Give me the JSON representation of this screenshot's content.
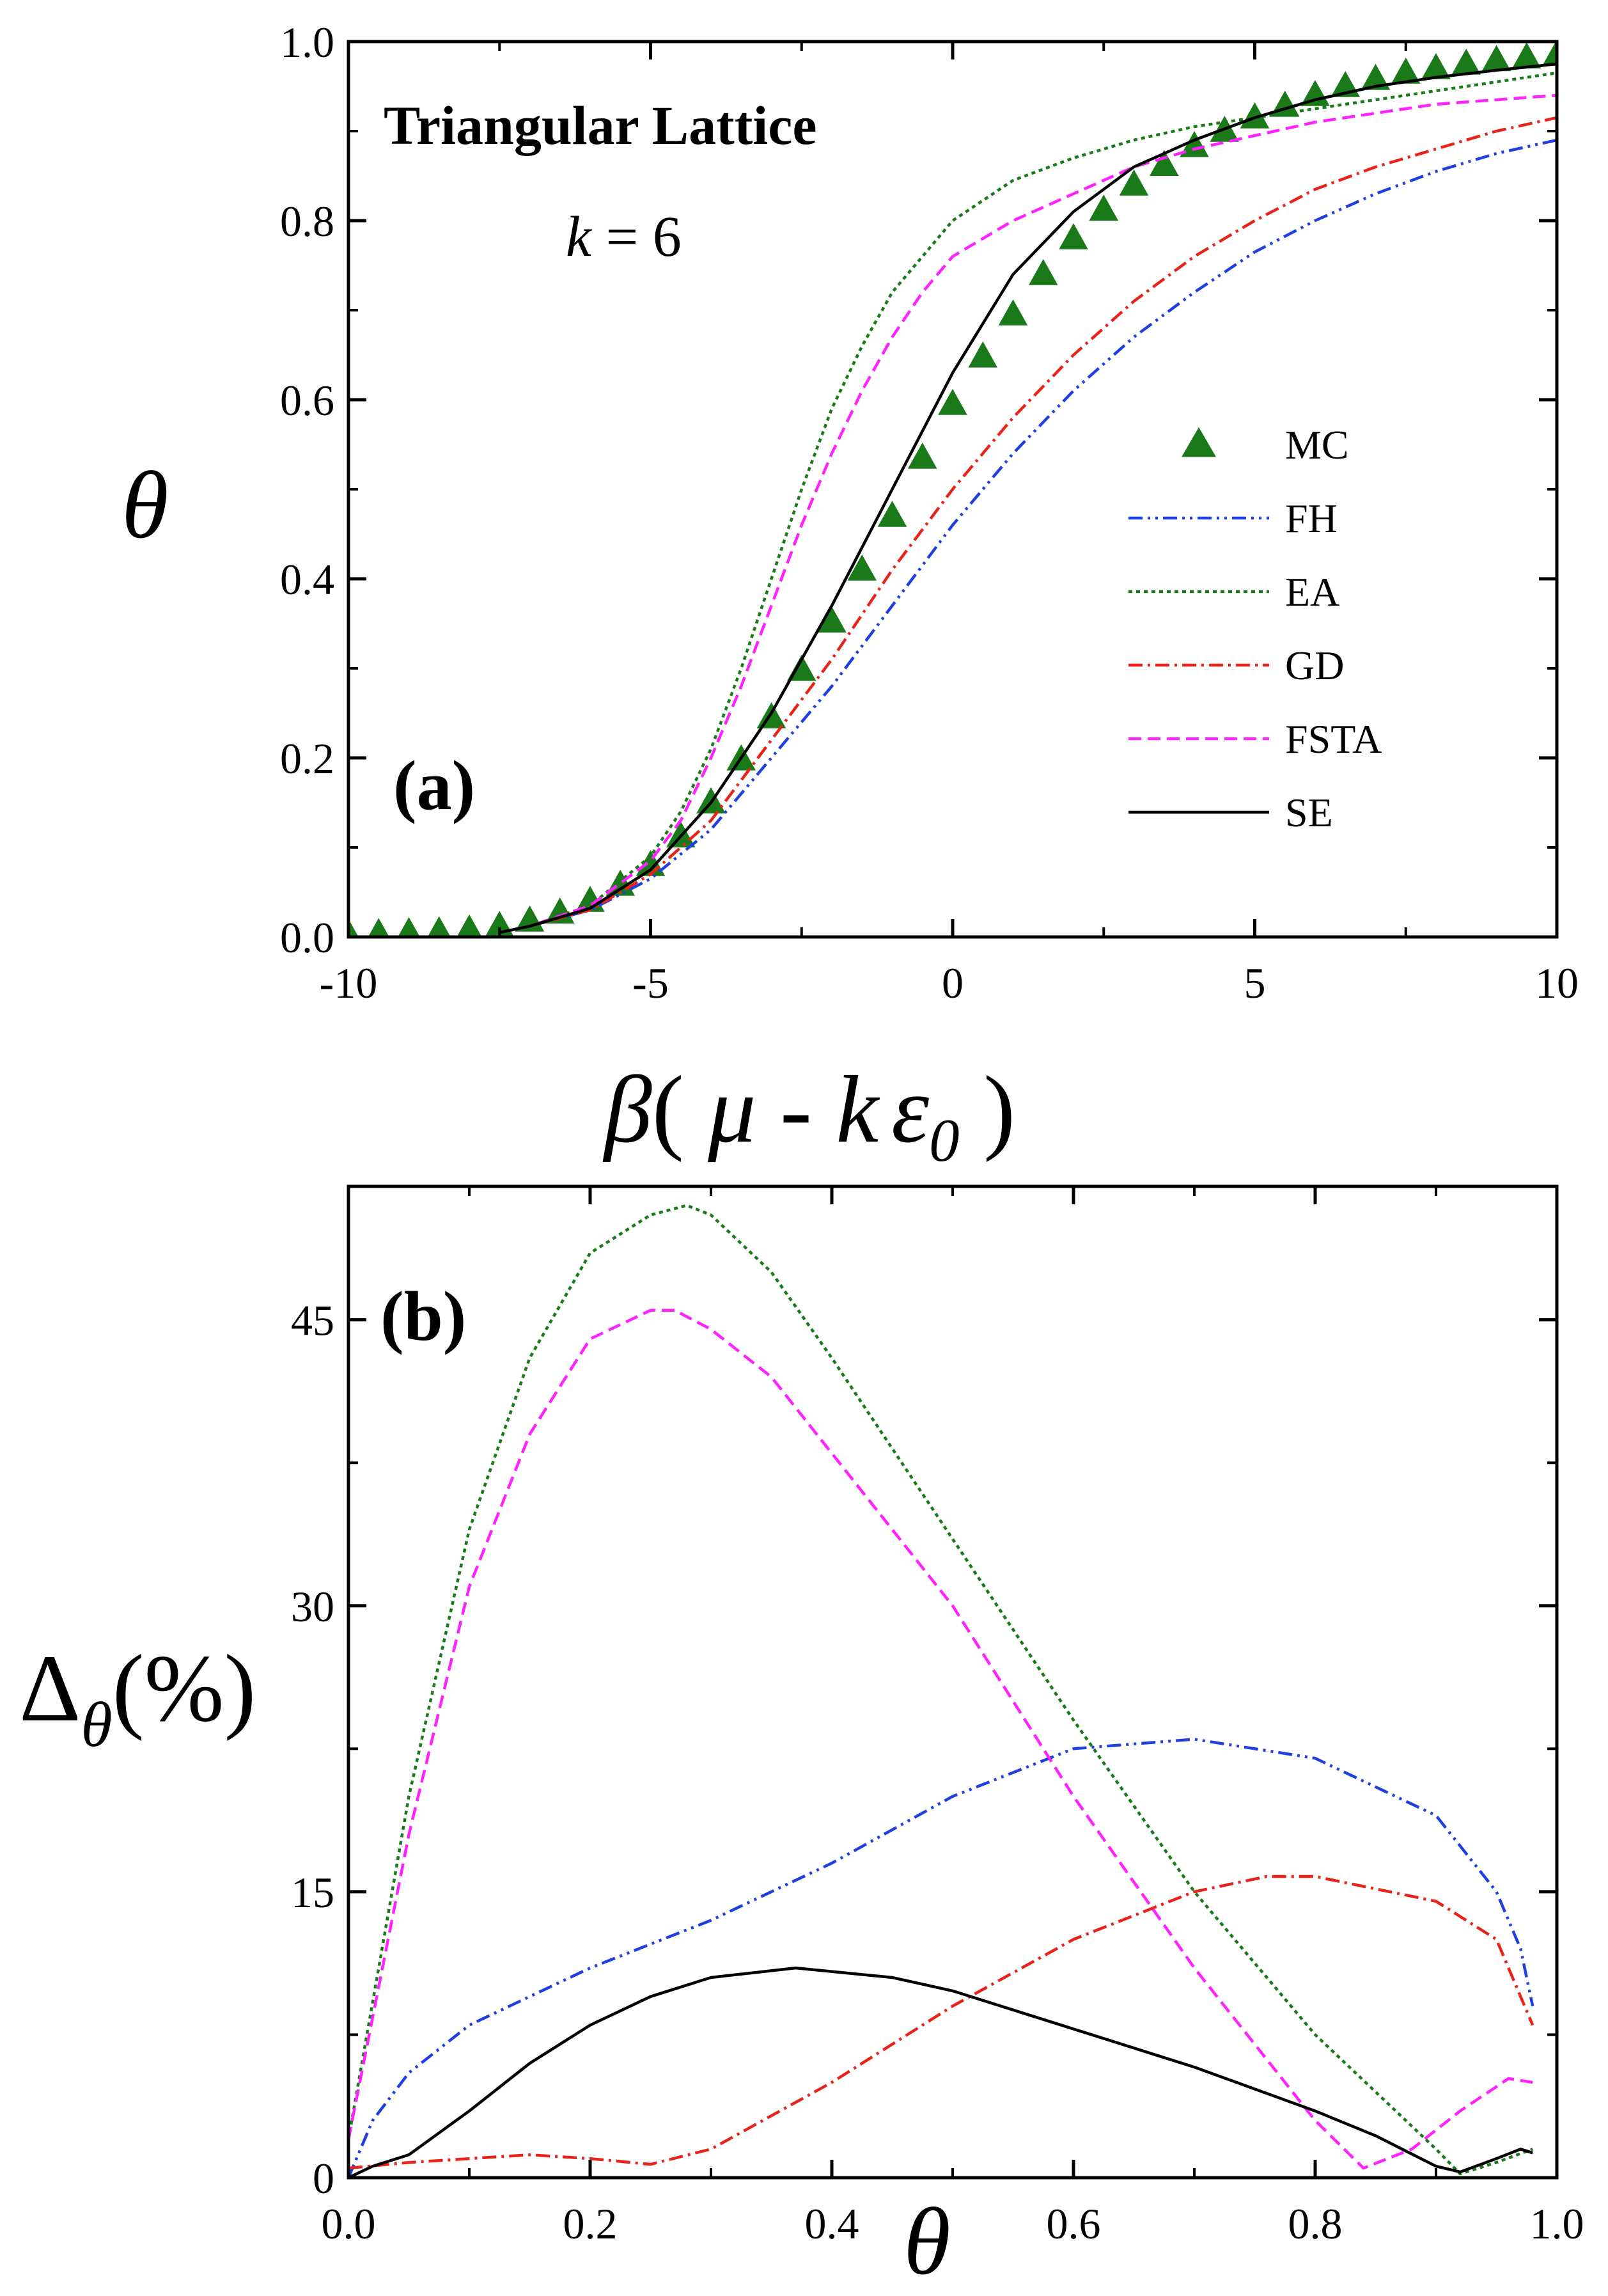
{
  "chart_data": [
    {
      "type": "line",
      "panel_label": "(a)",
      "title": "Triangular Lattice",
      "k_var": "k",
      "k_rest": " = 6",
      "xlabel": {
        "beta": "β",
        "open": "( ",
        "mu": "μ",
        "minus": " - ",
        "k": "k",
        "eps": "ε",
        "sub": "0",
        "close": " )"
      },
      "ylabel": "θ",
      "xlim": [
        -10,
        10
      ],
      "ylim": [
        0,
        1
      ],
      "x_ticks": [
        {
          "value": -10,
          "label": "-10"
        },
        {
          "value": -5,
          "label": "-5"
        },
        {
          "value": 0,
          "label": "0"
        },
        {
          "value": 5,
          "label": "5"
        },
        {
          "value": 10,
          "label": "10"
        }
      ],
      "y_ticks": [
        {
          "value": 0,
          "label": "0.0"
        },
        {
          "value": 0.2,
          "label": "0.2"
        },
        {
          "value": 0.4,
          "label": "0.4"
        },
        {
          "value": 0.6,
          "label": "0.6"
        },
        {
          "value": 0.8,
          "label": "0.8"
        },
        {
          "value": 1.0,
          "label": "1.0"
        }
      ],
      "legend_position": "right",
      "series": [
        {
          "name": "MC",
          "kind": "markers",
          "color": "#1a7a1a",
          "x": [
            -10,
            -9.5,
            -9,
            -8.5,
            -8,
            -7.5,
            -7,
            -6.5,
            -6,
            -5.5,
            -5,
            -4.5,
            -4,
            -3.5,
            -3,
            -2.5,
            -2,
            -1.5,
            -1,
            -0.5,
            0,
            0.5,
            1,
            1.5,
            2,
            2.5,
            3,
            3.5,
            4,
            4.5,
            5,
            5.5,
            6,
            6.5,
            7,
            7.5,
            8,
            8.5,
            9,
            9.5,
            10
          ],
          "y": [
            0.003,
            0.004,
            0.005,
            0.006,
            0.008,
            0.012,
            0.018,
            0.027,
            0.04,
            0.058,
            0.08,
            0.112,
            0.15,
            0.198,
            0.245,
            0.298,
            0.352,
            0.41,
            0.47,
            0.535,
            0.595,
            0.648,
            0.695,
            0.74,
            0.78,
            0.812,
            0.84,
            0.862,
            0.883,
            0.9,
            0.915,
            0.928,
            0.94,
            0.95,
            0.958,
            0.965,
            0.97,
            0.975,
            0.979,
            0.982,
            0.985
          ]
        },
        {
          "name": "FH",
          "kind": "line",
          "color": "#1f3fe0",
          "dash": "22,8,4,8,4,8",
          "x": [
            -7.5,
            -7,
            -6,
            -5,
            -4,
            -3,
            -2,
            -1,
            0,
            1,
            2,
            3,
            4,
            5,
            6,
            7,
            8,
            9,
            10
          ],
          "y": [
            0.005,
            0.012,
            0.03,
            0.065,
            0.12,
            0.2,
            0.28,
            0.37,
            0.46,
            0.54,
            0.61,
            0.67,
            0.72,
            0.765,
            0.8,
            0.83,
            0.855,
            0.875,
            0.89
          ]
        },
        {
          "name": "EA",
          "kind": "line",
          "color": "#1a7a1a",
          "dash": "6,6",
          "x": [
            -7.5,
            -7,
            -6,
            -5,
            -4.5,
            -4,
            -3.5,
            -3,
            -2.5,
            -2,
            -1.5,
            -1,
            -0.5,
            0,
            1,
            2,
            3,
            4,
            5,
            6,
            7,
            8,
            9,
            10
          ],
          "y": [
            0.005,
            0.012,
            0.035,
            0.09,
            0.14,
            0.21,
            0.3,
            0.4,
            0.5,
            0.59,
            0.66,
            0.72,
            0.76,
            0.8,
            0.845,
            0.87,
            0.89,
            0.905,
            0.915,
            0.925,
            0.935,
            0.945,
            0.955,
            0.965
          ]
        },
        {
          "name": "GD",
          "kind": "line",
          "color": "#e8231a",
          "dash": "22,8,4,8",
          "x": [
            -7.5,
            -7,
            -6,
            -5,
            -4,
            -3,
            -2,
            -1,
            0,
            1,
            2,
            3,
            4,
            5,
            6,
            7,
            8,
            9,
            10
          ],
          "y": [
            0.005,
            0.012,
            0.03,
            0.07,
            0.13,
            0.22,
            0.31,
            0.41,
            0.5,
            0.58,
            0.65,
            0.71,
            0.76,
            0.8,
            0.835,
            0.86,
            0.88,
            0.9,
            0.915
          ]
        },
        {
          "name": "FSTA",
          "kind": "line",
          "color": "#ff22ff",
          "dash": "20,10",
          "x": [
            -7.5,
            -7,
            -6,
            -5,
            -4.5,
            -4,
            -3.5,
            -3,
            -2.5,
            -2,
            -1.5,
            -1,
            -0.5,
            0,
            1,
            2,
            3,
            4,
            5,
            6,
            7,
            8,
            9,
            10
          ],
          "y": [
            0.005,
            0.012,
            0.035,
            0.085,
            0.13,
            0.2,
            0.28,
            0.37,
            0.46,
            0.54,
            0.61,
            0.67,
            0.72,
            0.76,
            0.8,
            0.83,
            0.86,
            0.88,
            0.895,
            0.91,
            0.92,
            0.93,
            0.935,
            0.94
          ]
        },
        {
          "name": "SE",
          "kind": "line",
          "color": "#000000",
          "dash": "",
          "x": [
            -7.5,
            -7,
            -6,
            -5,
            -4,
            -3,
            -2,
            -1,
            0,
            1,
            2,
            3,
            4,
            5,
            6,
            7,
            8,
            9,
            10
          ],
          "y": [
            0.005,
            0.012,
            0.032,
            0.075,
            0.15,
            0.25,
            0.37,
            0.5,
            0.63,
            0.74,
            0.81,
            0.86,
            0.89,
            0.915,
            0.935,
            0.95,
            0.96,
            0.968,
            0.975
          ]
        }
      ]
    },
    {
      "type": "line",
      "panel_label": "(b)",
      "xlabel": "θ",
      "ylabel": {
        "delta": "Δ",
        "sub": "θ",
        "rest": "(%)"
      },
      "xlim": [
        0,
        1
      ],
      "ylim": [
        0,
        52
      ],
      "x_ticks": [
        {
          "value": 0,
          "label": "0.0"
        },
        {
          "value": 0.2,
          "label": "0.2"
        },
        {
          "value": 0.4,
          "label": "0.4"
        },
        {
          "value": 0.6,
          "label": "0.6"
        },
        {
          "value": 0.8,
          "label": "0.8"
        },
        {
          "value": 1.0,
          "label": "1.0"
        }
      ],
      "y_ticks": [
        {
          "value": 0,
          "label": "0"
        },
        {
          "value": 15,
          "label": "15"
        },
        {
          "value": 30,
          "label": "30"
        },
        {
          "value": 45,
          "label": "45"
        }
      ],
      "series": [
        {
          "name": "FH",
          "color": "#1f3fe0",
          "dash": "22,8,4,8,4,8",
          "x": [
            0.0,
            0.02,
            0.05,
            0.1,
            0.15,
            0.2,
            0.3,
            0.4,
            0.5,
            0.6,
            0.7,
            0.8,
            0.9,
            0.95,
            0.97,
            0.98
          ],
          "y": [
            0.0,
            3.0,
            5.5,
            8.0,
            9.5,
            11.0,
            13.5,
            16.5,
            20.0,
            22.5,
            23.0,
            22.0,
            19.0,
            15.0,
            12.0,
            9.0
          ]
        },
        {
          "name": "EA",
          "color": "#1a7a1a",
          "dash": "6,6",
          "x": [
            0.0,
            0.05,
            0.1,
            0.15,
            0.2,
            0.25,
            0.28,
            0.3,
            0.35,
            0.4,
            0.5,
            0.6,
            0.7,
            0.8,
            0.9,
            0.92,
            0.95,
            0.98
          ],
          "y": [
            2.0,
            20.0,
            34.0,
            43.0,
            48.5,
            50.5,
            51.0,
            50.5,
            47.5,
            43.0,
            33.5,
            24.0,
            15.0,
            7.5,
            1.5,
            0.2,
            0.8,
            1.5
          ]
        },
        {
          "name": "GD",
          "color": "#e8231a",
          "dash": "22,8,4,8",
          "x": [
            0.0,
            0.05,
            0.1,
            0.15,
            0.2,
            0.25,
            0.3,
            0.4,
            0.5,
            0.6,
            0.7,
            0.76,
            0.8,
            0.9,
            0.95,
            0.98
          ],
          "y": [
            0.5,
            0.8,
            1.0,
            1.2,
            1.0,
            0.7,
            1.5,
            5.0,
            9.0,
            12.5,
            15.0,
            15.8,
            15.8,
            14.5,
            12.5,
            8.0
          ]
        },
        {
          "name": "FSTA",
          "color": "#ff22ff",
          "dash": "20,10",
          "x": [
            0.0,
            0.05,
            0.1,
            0.15,
            0.2,
            0.25,
            0.27,
            0.3,
            0.35,
            0.4,
            0.5,
            0.6,
            0.7,
            0.8,
            0.84,
            0.88,
            0.92,
            0.96,
            0.98
          ],
          "y": [
            2.0,
            18.0,
            31.0,
            39.0,
            44.0,
            45.5,
            45.5,
            44.5,
            42.0,
            38.0,
            30.0,
            20.0,
            11.0,
            3.0,
            0.5,
            1.5,
            3.5,
            5.2,
            5.0
          ]
        },
        {
          "name": "SE",
          "color": "#000000",
          "dash": "",
          "x": [
            0.0,
            0.02,
            0.05,
            0.1,
            0.15,
            0.2,
            0.25,
            0.3,
            0.37,
            0.45,
            0.5,
            0.6,
            0.7,
            0.8,
            0.85,
            0.9,
            0.92,
            0.95,
            0.97,
            0.98
          ],
          "y": [
            0.0,
            0.6,
            1.2,
            3.5,
            6.0,
            8.0,
            9.5,
            10.5,
            11.0,
            10.5,
            9.8,
            7.8,
            5.8,
            3.5,
            2.2,
            0.6,
            0.3,
            1.0,
            1.5,
            1.3
          ]
        }
      ]
    }
  ]
}
